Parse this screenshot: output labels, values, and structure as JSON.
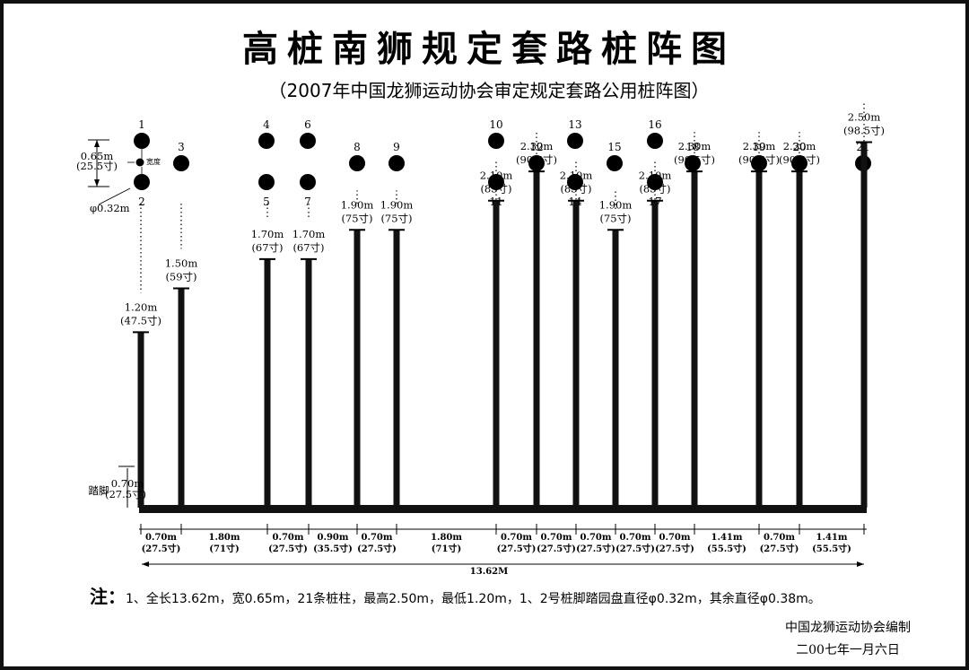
{
  "title": "高桩南狮规定套路桩阵图",
  "subtitle": "（2007年中国龙狮运动协会审定规定套路公用桩阵图）",
  "side": {
    "width_m": "0.65m",
    "width_cun": "(25.5寸)",
    "tiny_label": "宽度",
    "diam": "φ0.32m",
    "foot_label": "踏脚",
    "foot_m": "0.70m",
    "foot_cun": "(27.5寸)"
  },
  "posts": [
    {
      "m": "1.20m",
      "cun": "(47.5寸)",
      "height": 1.2
    },
    {
      "m": "1.50m",
      "cun": "(59寸)",
      "height": 1.5
    },
    {
      "m": "1.70m",
      "cun": "(67寸)",
      "height": 1.7
    },
    {
      "m": "1.70m",
      "cun": "(67寸)",
      "height": 1.7
    },
    {
      "m": "1.90m",
      "cun": "(75寸)",
      "height": 1.9
    },
    {
      "m": "1.90m",
      "cun": "(75寸)",
      "height": 1.9
    },
    {
      "m": "2.10m",
      "cun": "(83寸)",
      "height": 2.1
    },
    {
      "m": "2.30m",
      "cun": "(90.5寸)",
      "height": 2.3
    },
    {
      "m": "2.10m",
      "cun": "(83寸)",
      "height": 2.1
    },
    {
      "m": "1.90m",
      "cun": "(75寸)",
      "height": 1.9
    },
    {
      "m": "2.10m",
      "cun": "(83寸)",
      "height": 2.1
    },
    {
      "m": "2.30m",
      "cun": "(90.5寸)",
      "height": 2.3
    },
    {
      "m": "2.30m",
      "cun": "(90.5寸)",
      "height": 2.3
    },
    {
      "m": "2.30m",
      "cun": "(90.5寸)",
      "height": 2.3
    },
    {
      "m": "2.50m",
      "cun": "(98.5寸)",
      "height": 2.5
    }
  ],
  "pile_numbers": [
    "1",
    "2",
    "3",
    "4",
    "5",
    "6",
    "7",
    "8",
    "9",
    "10",
    "11",
    "12",
    "13",
    "14",
    "15",
    "16",
    "17",
    "18",
    "19",
    "20",
    "21"
  ],
  "spacings": [
    {
      "m": "0.70m",
      "cun": "(27.5寸)"
    },
    {
      "m": "1.80m",
      "cun": "(71寸)"
    },
    {
      "m": "0.70m",
      "cun": "(27.5寸)"
    },
    {
      "m": "0.90m",
      "cun": "(35.5寸)"
    },
    {
      "m": "0.70m",
      "cun": "(27.5寸)"
    },
    {
      "m": "1.80m",
      "cun": "(71寸)"
    },
    {
      "m": "0.70m",
      "cun": "(27.5寸)"
    },
    {
      "m": "0.70m",
      "cun": "(27.5寸)"
    },
    {
      "m": "0.70m",
      "cun": "(27.5寸)"
    },
    {
      "m": "0.70m",
      "cun": "(27.5寸)"
    },
    {
      "m": "0.70m",
      "cun": "(27.5寸)"
    },
    {
      "m": "1.41m",
      "cun": "(55.5寸)"
    },
    {
      "m": "0.70m",
      "cun": "(27.5寸)"
    },
    {
      "m": "1.41m",
      "cun": "(55.5寸)"
    }
  ],
  "total": "13.62M",
  "note_prefix": "注：",
  "note_text": "1、全长13.62m，宽0.65m，21条桩柱，最高2.50m，最低1.20m，1、2号桩脚踏园盘直径φ0.32m，其余直径φ0.38m。",
  "footer_org": "中国龙狮运动协会编制",
  "footer_date": "二00七年一月六日"
}
